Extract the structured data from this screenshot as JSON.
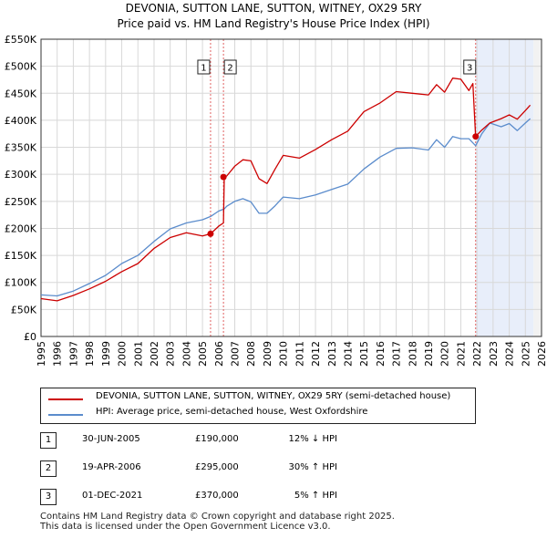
{
  "chart_data": {
    "type": "line",
    "title": "DEVONIA, SUTTON LANE, SUTTON, WITNEY, OX29 5RY",
    "subtitle": "Price paid vs. HM Land Registry's House Price Index (HPI)",
    "xlabel": "",
    "ylabel": "",
    "xlim": [
      1995,
      2026
    ],
    "ylim": [
      0,
      550000
    ],
    "x_ticks": [
      1995,
      1996,
      1997,
      1998,
      1999,
      2000,
      2001,
      2002,
      2003,
      2004,
      2005,
      2006,
      2007,
      2008,
      2009,
      2010,
      2011,
      2012,
      2013,
      2014,
      2015,
      2016,
      2017,
      2018,
      2019,
      2020,
      2021,
      2022,
      2023,
      2024,
      2025,
      2026
    ],
    "y_ticks": [
      0,
      50000,
      100000,
      150000,
      200000,
      250000,
      300000,
      350000,
      400000,
      450000,
      500000,
      550000
    ],
    "y_tick_labels": [
      "£0",
      "£50K",
      "£100K",
      "£150K",
      "£200K",
      "£250K",
      "£300K",
      "£350K",
      "£400K",
      "£450K",
      "£500K",
      "£550K"
    ],
    "grid": true,
    "colors": {
      "property": "#cc0000",
      "hpi": "#5b8ccc",
      "shade": "#e8eefa",
      "sale_line": "#e06060"
    },
    "series": [
      {
        "name": "DEVONIA, SUTTON LANE, SUTTON, WITNEY, OX29 5RY (semi-detached house)",
        "color": "#cc0000",
        "x": [
          1995.0,
          1996.0,
          1997.0,
          1998.0,
          1999.0,
          2000.0,
          2001.0,
          2002.0,
          2003.0,
          2004.0,
          2005.0,
          2005.5,
          2006.0,
          2006.3,
          2006.35,
          2006.5,
          2007.0,
          2007.5,
          2008.0,
          2008.5,
          2009.0,
          2009.5,
          2010.0,
          2011.0,
          2012.0,
          2013.0,
          2014.0,
          2015.0,
          2016.0,
          2017.0,
          2018.0,
          2019.0,
          2019.5,
          2020.0,
          2020.5,
          2021.0,
          2021.5,
          2021.75,
          2021.92,
          2022.3,
          2022.8,
          2023.5,
          2024.0,
          2024.5,
          2025.0,
          2025.3
        ],
        "y": [
          70000,
          66000,
          76000,
          88000,
          102000,
          120000,
          135000,
          163000,
          183000,
          192000,
          186000,
          190000,
          204000,
          210000,
          295000,
          297000,
          315000,
          327000,
          325000,
          292000,
          283000,
          310000,
          335000,
          330000,
          346000,
          364000,
          380000,
          416000,
          432000,
          453000,
          450000,
          447000,
          466000,
          452000,
          478000,
          476000,
          455000,
          468000,
          370000,
          382000,
          395000,
          403000,
          410000,
          402000,
          418000,
          428000
        ]
      },
      {
        "name": "HPI: Average price, semi-detached house, West Oxfordshire",
        "color": "#5b8ccc",
        "x": [
          1995.0,
          1996.0,
          1997.0,
          1998.0,
          1999.0,
          2000.0,
          2001.0,
          2002.0,
          2003.0,
          2004.0,
          2005.0,
          2005.5,
          2006.0,
          2006.35,
          2006.5,
          2007.0,
          2007.5,
          2008.0,
          2008.5,
          2009.0,
          2009.5,
          2010.0,
          2011.0,
          2012.0,
          2013.0,
          2014.0,
          2015.0,
          2016.0,
          2017.0,
          2018.0,
          2019.0,
          2019.5,
          2020.0,
          2020.5,
          2021.0,
          2021.5,
          2021.92,
          2022.3,
          2022.8,
          2023.5,
          2024.0,
          2024.5,
          2025.0,
          2025.3
        ],
        "y": [
          77000,
          75000,
          84000,
          98000,
          113000,
          135000,
          150000,
          176000,
          199000,
          210000,
          216000,
          222000,
          232000,
          236000,
          241000,
          250000,
          255000,
          249000,
          228000,
          228000,
          242000,
          258000,
          255000,
          262000,
          272000,
          282000,
          310000,
          332000,
          348000,
          349000,
          345000,
          364000,
          350000,
          370000,
          366000,
          366000,
          353000,
          375000,
          395000,
          388000,
          394000,
          381000,
          395000,
          403000
        ]
      }
    ],
    "sales": [
      {
        "label": "1",
        "x": 2005.5,
        "y": 190000,
        "date": "30-JUN-2005",
        "price": "£190,000",
        "hpi": "12% ↓ HPI"
      },
      {
        "label": "2",
        "x": 2006.3,
        "y": 295000,
        "date": "19-APR-2006",
        "price": "£295,000",
        "hpi": "30% ↑ HPI"
      },
      {
        "label": "3",
        "x": 2021.92,
        "y": 370000,
        "date": "01-DEC-2021",
        "price": "£370,000",
        "hpi": "5% ↑ HPI"
      }
    ]
  },
  "legend": {
    "property_label": "DEVONIA, SUTTON LANE, SUTTON, WITNEY, OX29 5RY (semi-detached house)",
    "hpi_label": "HPI: Average price, semi-detached house, West Oxfordshire"
  },
  "footer": {
    "line1": "Contains HM Land Registry data © Crown copyright and database right 2025.",
    "line2": "This data is licensed under the Open Government Licence v3.0."
  }
}
